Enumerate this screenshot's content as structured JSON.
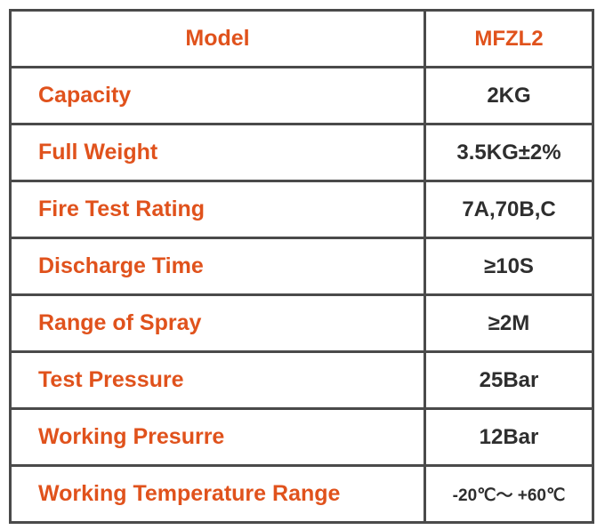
{
  "header": {
    "label": "Model",
    "value": "MFZL2"
  },
  "rows": [
    {
      "label": "Capacity",
      "value": "2KG"
    },
    {
      "label": "Full Weight",
      "value": "3.5KG±2%"
    },
    {
      "label": "Fire Test Rating",
      "value": "7A,70B,C"
    },
    {
      "label": "Discharge Time",
      "value": "≥10S"
    },
    {
      "label": "Range of Spray",
      "value": "≥2M"
    },
    {
      "label": "Test Pressure",
      "value": "25Bar"
    },
    {
      "label": "Working Presurre",
      "value": "12Bar"
    },
    {
      "label": "Working Temperature Range",
      "value": "-20℃～ +60℃"
    }
  ],
  "colors": {
    "label": "#e0521c",
    "value": "#2e2e2e",
    "border": "#4a4a4a"
  }
}
